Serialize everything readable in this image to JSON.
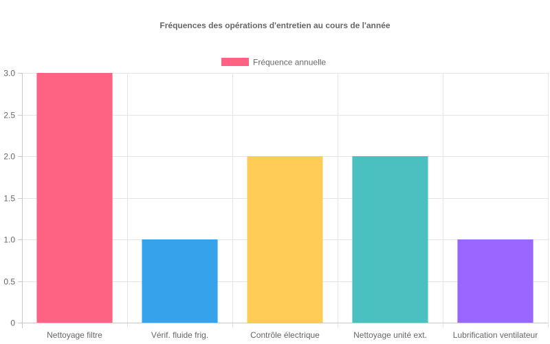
{
  "chart_data": {
    "type": "bar",
    "title": "Fréquences des opérations d'entretien au cours de l'année",
    "legend": {
      "position": "top",
      "entries": [
        {
          "label": "Fréquence annuelle",
          "color": "#ff6384"
        }
      ]
    },
    "categories": [
      "Nettoyage filtre",
      "Vérif. fluide frig.",
      "Contrôle électrique",
      "Nettoyage unité ext.",
      "Lubrification ventilateur"
    ],
    "series": [
      {
        "name": "Fréquence annuelle",
        "values": [
          3,
          1,
          2,
          2,
          1
        ],
        "colors": [
          "#ff6384",
          "#36a2eb",
          "#ffcd56",
          "#4bc0c0",
          "#9966ff"
        ]
      }
    ],
    "ylim": [
      0,
      3
    ],
    "yticks": [
      "0",
      "0.5",
      "1.0",
      "1.5",
      "2.0",
      "2.5",
      "3.0"
    ],
    "grid": true
  }
}
